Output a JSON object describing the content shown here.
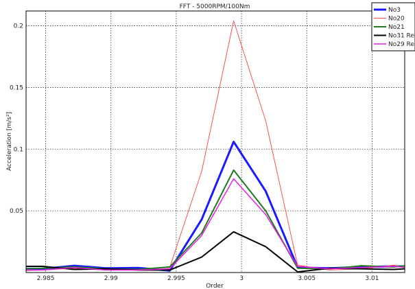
{
  "chart_data": {
    "type": "line",
    "title": "FFT - 5000RPM/100Nm",
    "xlabel": "Order",
    "ylabel": "Acceleration [m/s²]",
    "xlim": [
      2.9835,
      3.0125
    ],
    "ylim": [
      0,
      0.212
    ],
    "x_ticks": [
      2.985,
      2.99,
      2.995,
      3,
      3.005,
      3.01
    ],
    "x_tick_labels": [
      "2.985",
      "2.99",
      "2.995",
      "3",
      "3.005",
      "3.01"
    ],
    "y_ticks": [
      0.05,
      0.1,
      0.15,
      0.2
    ],
    "y_tick_labels": [
      "0.05",
      "0.1",
      "0.15",
      "0.2"
    ],
    "grid": true,
    "legend_position": "top-right",
    "x": [
      2.9835,
      2.98475,
      2.9872,
      2.9896,
      2.9921,
      2.9945,
      2.99695,
      2.9994,
      3.00185,
      3.0043,
      3.00675,
      3.0092,
      3.01165,
      3.0125
    ],
    "series": [
      {
        "name": "No3",
        "color": "#1a1aff",
        "width": 3,
        "values": [
          0.003,
          0.003,
          0.0055,
          0.0035,
          0.0038,
          0.0015,
          0.043,
          0.106,
          0.066,
          0.004,
          0.0035,
          0.0045,
          0.005,
          0.005
        ]
      },
      {
        "name": "No20",
        "color": "#ff4d4d",
        "width": 1,
        "values": [
          0.0015,
          0.002,
          0.0035,
          0.002,
          0.0025,
          0.004,
          0.082,
          0.204,
          0.123,
          0.006,
          0.002,
          0.003,
          0.006,
          0.0045
        ]
      },
      {
        "name": "No21",
        "color": "#1f7a1f",
        "width": 2,
        "values": [
          0.003,
          0.0035,
          0.0045,
          0.003,
          0.0025,
          0.0045,
          0.032,
          0.083,
          0.05,
          0.0035,
          0.003,
          0.0055,
          0.0045,
          0.0055
        ]
      },
      {
        "name": "No31 Re",
        "color": "#000000",
        "width": 2,
        "values": [
          0.005,
          0.005,
          0.0025,
          0.003,
          0.002,
          0.002,
          0.0125,
          0.033,
          0.021,
          0.0005,
          0.0035,
          0.003,
          0.0025,
          0.003
        ]
      },
      {
        "name": "No29 Re",
        "color": "#e61ee6",
        "width": 1.5,
        "values": [
          0.002,
          0.002,
          0.004,
          0.002,
          0.002,
          0.003,
          0.03,
          0.076,
          0.047,
          0.005,
          0.003,
          0.004,
          0.005,
          0.004
        ]
      }
    ]
  }
}
